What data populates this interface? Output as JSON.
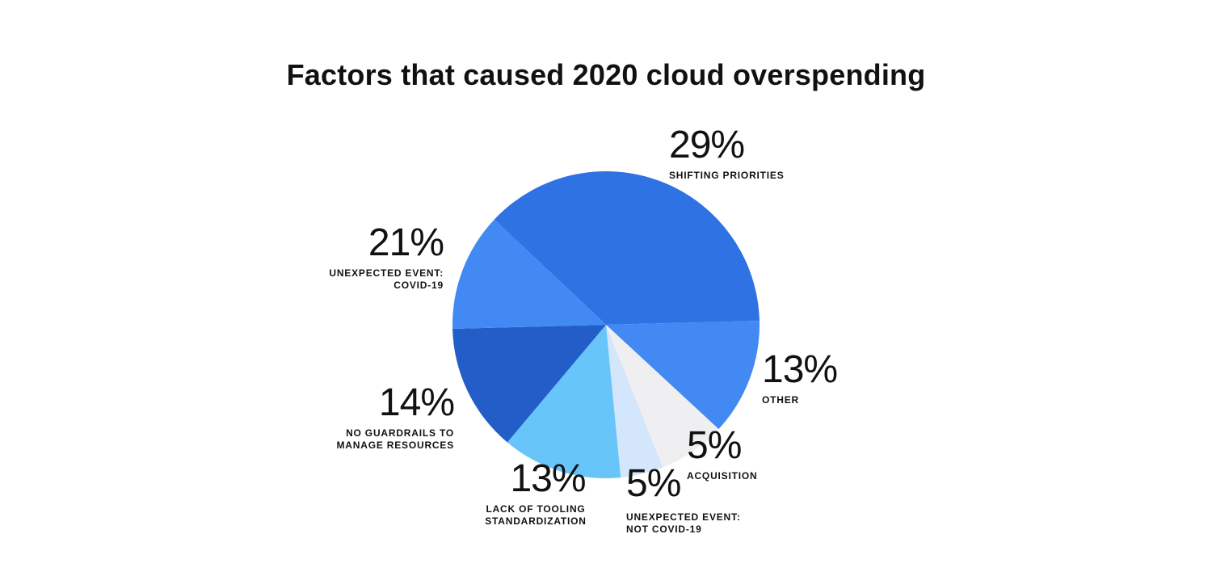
{
  "chart_data": {
    "type": "pie",
    "title": "Factors that caused 2020 cloud overspending",
    "slices": [
      {
        "pct_label": "29%",
        "value": 29,
        "label_lines": [
          "SHIFTING PRIORITIES"
        ],
        "color": "#2F72E3"
      },
      {
        "pct_label": "13%",
        "value": 13,
        "label_lines": [
          "OTHER"
        ],
        "color": "#4289F4"
      },
      {
        "pct_label": "5%",
        "value": 5,
        "label_lines": [
          "ACQUISITION"
        ],
        "color": "#EFEFF1"
      },
      {
        "pct_label": "5%",
        "value": 5,
        "label_lines": [
          "UNEXPECTED EVENT:",
          "NOT COVID-19"
        ],
        "color": "#D3E6FB"
      },
      {
        "pct_label": "13%",
        "value": 13,
        "label_lines": [
          "LACK OF TOOLING",
          "STANDARDIZATION"
        ],
        "color": "#67C5FA"
      },
      {
        "pct_label": "14%",
        "value": 14,
        "label_lines": [
          "NO GUARDRAILS TO",
          "MANAGE RESOURCES"
        ],
        "color": "#235DC8"
      },
      {
        "pct_label": "21%",
        "value": 21,
        "label_lines": [
          "UNEXPECTED EVENT:",
          "COVID-19"
        ],
        "color": "#4289F4"
      }
    ]
  }
}
